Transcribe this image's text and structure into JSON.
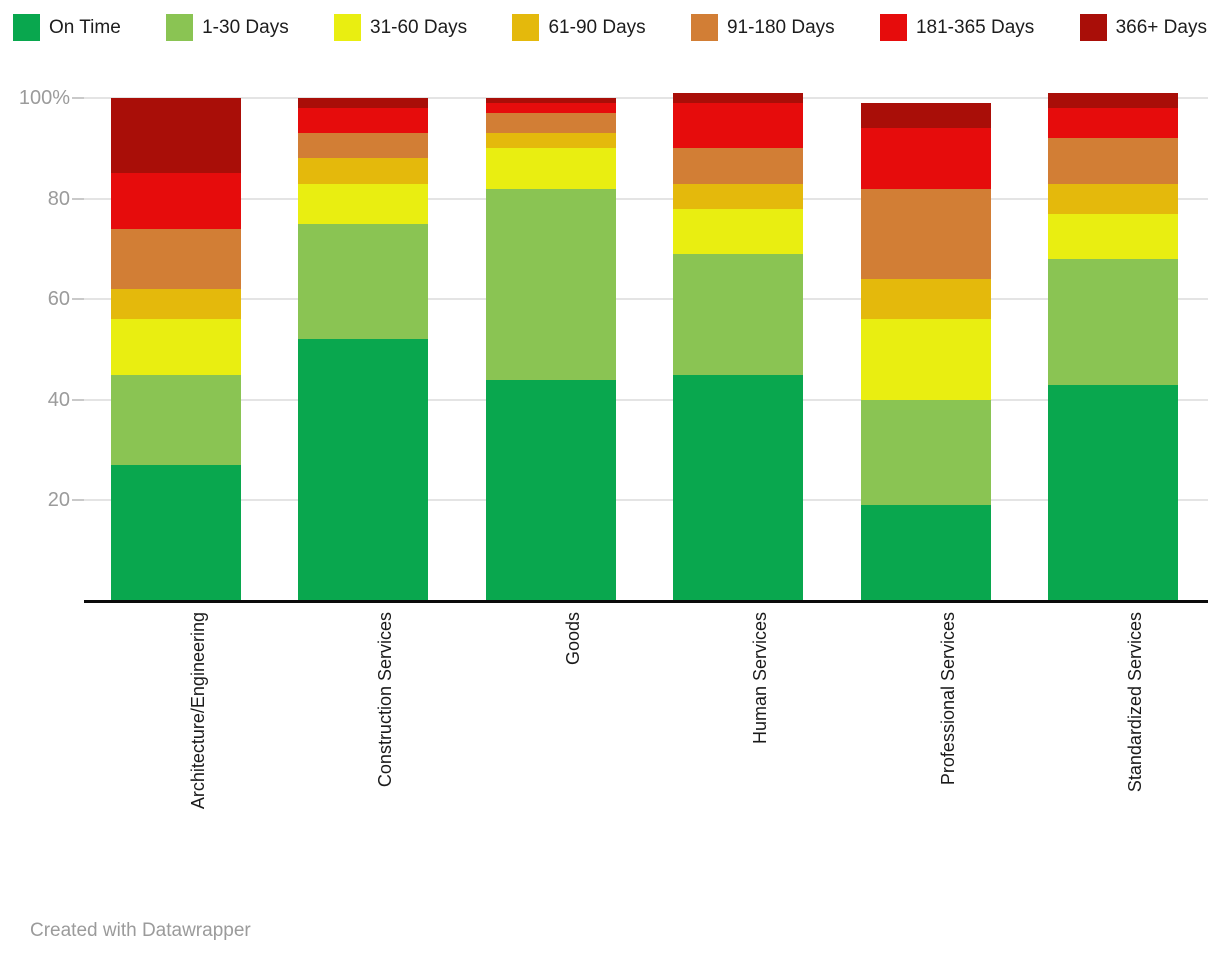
{
  "legend": {
    "items": [
      {
        "label": "On Time",
        "color": "#09a74e"
      },
      {
        "label": "1-30 Days",
        "color": "#8ac453"
      },
      {
        "label": "31-60 Days",
        "color": "#e9ee11"
      },
      {
        "label": "61-90 Days",
        "color": "#e4b90c"
      },
      {
        "label": "91-180 Days",
        "color": "#d27e35"
      },
      {
        "label": "181-365 Days",
        "color": "#e60c0c"
      },
      {
        "label": "366+ Days",
        "color": "#a90e08"
      }
    ]
  },
  "chart_data": {
    "type": "bar",
    "stacked": true,
    "categories": [
      "Architecture/Engineering",
      "Construction Services",
      "Goods",
      "Human Services",
      "Professional Services",
      "Standardized Services"
    ],
    "series": [
      {
        "name": "On Time",
        "color": "#09a74e",
        "values": [
          27,
          52,
          44,
          45,
          19,
          43
        ]
      },
      {
        "name": "1-30 Days",
        "color": "#8ac453",
        "values": [
          18,
          23,
          38,
          24,
          21,
          25
        ]
      },
      {
        "name": "31-60 Days",
        "color": "#e9ee11",
        "values": [
          11,
          8,
          8,
          9,
          16,
          9
        ]
      },
      {
        "name": "61-90 Days",
        "color": "#e4b90c",
        "values": [
          6,
          5,
          3,
          5,
          8,
          6
        ]
      },
      {
        "name": "91-180 Days",
        "color": "#d27e35",
        "values": [
          12,
          5,
          4,
          7,
          18,
          9
        ]
      },
      {
        "name": "181-365 Days",
        "color": "#e60c0c",
        "values": [
          11,
          5,
          2,
          9,
          12,
          6
        ]
      },
      {
        "name": "366+ Days",
        "color": "#a90e08",
        "values": [
          15,
          2,
          1,
          2,
          5,
          3
        ]
      }
    ],
    "category_totals": [
      100,
      100,
      100,
      101,
      99,
      101
    ],
    "yticks": [
      20,
      40,
      60,
      80,
      100
    ],
    "ytick_labels": [
      "20",
      "40",
      "60",
      "80",
      "100%"
    ],
    "ylim": [
      0,
      101
    ],
    "grid": true,
    "legend_position": "top",
    "bar_order_bottom_to_top": [
      "On Time",
      "1-30 Days",
      "31-60 Days",
      "61-90 Days",
      "91-180 Days",
      "181-365 Days",
      "366+ Days"
    ]
  },
  "footer": {
    "credit": "Created with Datawrapper"
  }
}
